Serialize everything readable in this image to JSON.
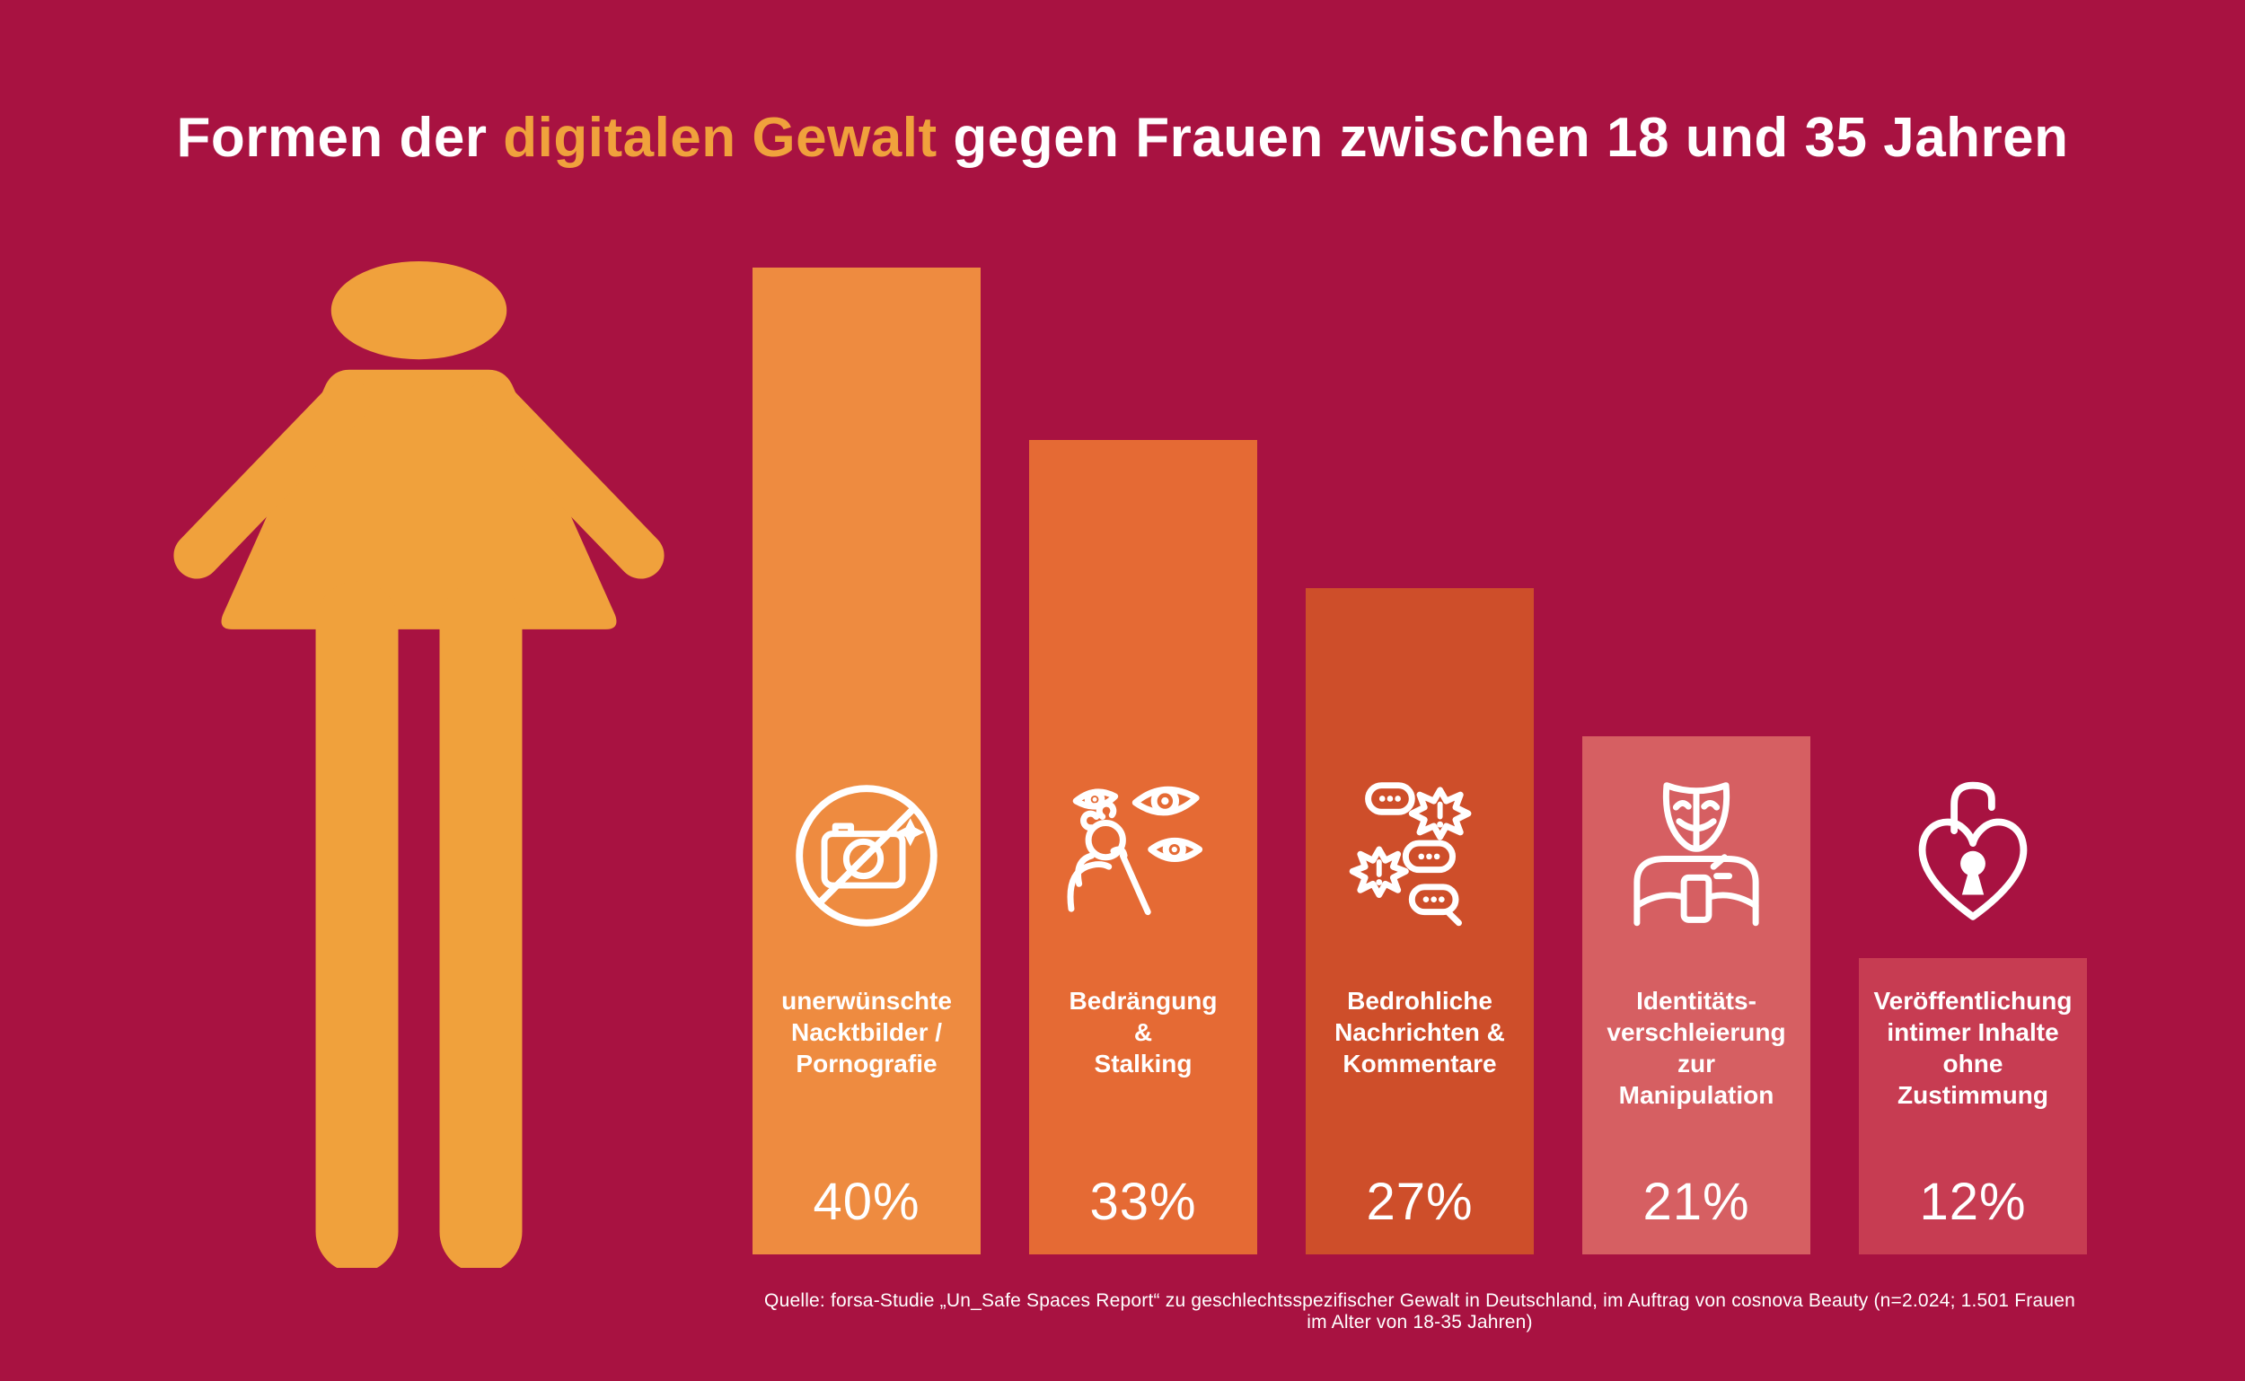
{
  "title": {
    "part1": "Formen der ",
    "highlight": "digitalen Gewalt",
    "part2": " gegen Frauen zwischen 18 und 35 Jahren"
  },
  "source": {
    "text": "Quelle: forsa-Studie „Un_Safe Spaces Report“ zu geschlechtsspezifischer Gewalt in Deutschland, im Auftrag von cosnova Beauty (n=2.024; 1.501 Frauen im Alter von 18-35 Jahren)"
  },
  "figure": {
    "name": "woman-pictogram",
    "color": "#F0A13C"
  },
  "colors": {
    "background": "#A81241",
    "accent_orange": "#F0A13C",
    "text": "#FFFFFF"
  },
  "chart_data": {
    "type": "bar",
    "title": "Formen der digitalen Gewalt gegen Frauen zwischen 18 und 35 Jahren",
    "xlabel": "",
    "ylabel": "",
    "unit": "%",
    "ylim": [
      0,
      40
    ],
    "grid": false,
    "legend": "none",
    "categories": [
      "unerwünschte Nacktbilder / Pornografie",
      "Bedrängung & Stalking",
      "Bedrohliche Nachrichten & Kommentare",
      "Identitätsverschleierung zur Manipulation",
      "Veröffentlichung intimer Inhalte ohne Zustimmung"
    ],
    "values": [
      40,
      33,
      27,
      21,
      12
    ],
    "bars": [
      {
        "label": "unerwünschte\nNacktbilder /\nPornografie",
        "value": 40,
        "value_label": "40%",
        "color": "#EE8B40",
        "icon": "no-photos-icon"
      },
      {
        "label": "Bedrängung\n&\nStalking",
        "value": 33,
        "value_label": "33%",
        "color": "#E56A34",
        "icon": "stalking-eyes-icon"
      },
      {
        "label": "Bedrohliche\nNachrichten &\nKommentare",
        "value": 27,
        "value_label": "27%",
        "color": "#CE4E2A",
        "icon": "threat-messages-icon"
      },
      {
        "label": "Identitäts-\nverschleierung\nzur\nManipulation",
        "value": 21,
        "value_label": "21%",
        "color": "#D65F62",
        "icon": "identity-mask-icon"
      },
      {
        "label": "Veröffentlichung\nintimer Inhalte\nohne\nZustimmung",
        "value": 12,
        "value_label": "12%",
        "color": "#C73C52",
        "icon": "heart-lock-icon"
      }
    ]
  }
}
